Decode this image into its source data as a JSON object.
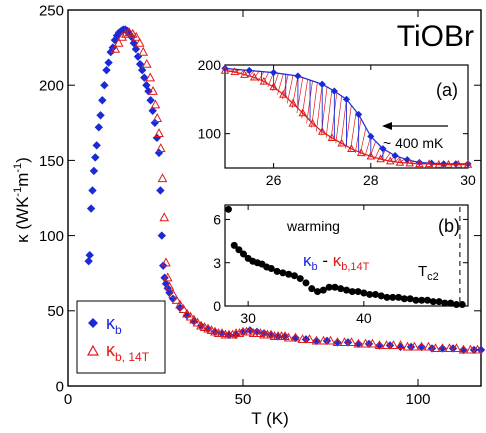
{
  "chart_data": [
    {
      "id": "main",
      "type": "scatter",
      "title": "TiOBr",
      "xlabel": "T (K)",
      "ylabel_parts": [
        "κ (WK",
        "-1",
        "m",
        "-1",
        ")"
      ],
      "xlim": [
        0,
        118
      ],
      "ylim": [
        0,
        250
      ],
      "xticks": [
        0,
        50,
        100
      ],
      "yticks": [
        0,
        50,
        100,
        150,
        200,
        250
      ],
      "legend": {
        "placement": "bottom-left",
        "entries": [
          {
            "symbol": "κ",
            "sub": "b",
            "marker": "filled-diamond",
            "color": "#1a2bd6"
          },
          {
            "symbol": "κ",
            "sub": "b, 14T",
            "marker": "open-triangle",
            "color": "#e01b1b"
          }
        ]
      },
      "series": [
        {
          "name": "κb",
          "marker": "filled-diamond",
          "color": "#1a2bd6",
          "x": [
            5.9,
            6.2,
            6.6,
            7.0,
            7.4,
            7.8,
            8.2,
            8.8,
            9.3,
            9.8,
            10.4,
            11.0,
            11.6,
            12.2,
            12.8,
            13.4,
            14.0,
            14.6,
            15.2,
            15.8,
            16.4,
            17.0,
            17.6,
            18.2,
            18.8,
            19.4,
            20.0,
            20.6,
            21.2,
            21.8,
            22.4,
            23.0,
            23.6,
            24.2,
            24.8,
            25.4,
            26.0,
            26.4,
            26.8,
            27.2,
            27.6,
            28.0,
            28.5,
            29.0,
            30,
            32,
            34,
            36,
            38,
            40,
            42,
            44,
            46,
            48,
            50,
            52,
            54,
            56,
            58,
            60,
            62,
            65,
            68,
            71,
            74,
            77,
            80,
            83,
            86,
            89,
            92,
            95,
            98,
            101,
            104,
            107,
            110,
            113,
            116,
            118
          ],
          "y": [
            83,
            87,
            118,
            130,
            143,
            152,
            160,
            172,
            180,
            190,
            200,
            210,
            215,
            222,
            225,
            230,
            233,
            235,
            236,
            237,
            237,
            236,
            234,
            232,
            228,
            224,
            219,
            214,
            210,
            205,
            200,
            196,
            190,
            183,
            175,
            165,
            155,
            130,
            100,
            80,
            72,
            68,
            65,
            62,
            58,
            52,
            47,
            43,
            40,
            38,
            36,
            35,
            34,
            34,
            36,
            37,
            36,
            35,
            34,
            33,
            33,
            32,
            31,
            30,
            30,
            29,
            29,
            28,
            28,
            27,
            27,
            26,
            26,
            26,
            25,
            25,
            25,
            24,
            24,
            24
          ]
        },
        {
          "name": "κb, 14T",
          "marker": "open-triangle",
          "color": "#e01b1b",
          "x": [
            13.5,
            14.5,
            15.5,
            16.5,
            17.5,
            18.5,
            19.5,
            20.5,
            21.5,
            22.5,
            23.5,
            24.3,
            25.0,
            25.5,
            26.0,
            26.5,
            27.0,
            27.5,
            28.0,
            28.5,
            29,
            30,
            31,
            32,
            33,
            34,
            35,
            36,
            37,
            38,
            39,
            40,
            41,
            42,
            43,
            44,
            45,
            46,
            47,
            48,
            49,
            50,
            51,
            52,
            53,
            54,
            55,
            56,
            57,
            58,
            59,
            60,
            61,
            62,
            63,
            65,
            67,
            69,
            71,
            73,
            75,
            77,
            79,
            81,
            83,
            85,
            87,
            89,
            91,
            93,
            95,
            97,
            99,
            101,
            103,
            105,
            107,
            109,
            111,
            113,
            115,
            117
          ],
          "y": [
            224,
            228,
            232,
            234,
            235,
            234,
            232,
            228,
            222,
            214,
            205,
            196,
            187,
            178,
            168,
            158,
            138,
            112,
            82,
            72,
            66,
            61,
            57,
            54,
            51,
            48,
            46,
            44,
            42,
            40,
            39,
            38,
            37,
            36,
            35,
            35,
            34,
            34,
            34,
            35,
            35,
            36,
            36,
            36,
            35,
            35,
            35,
            34,
            34,
            34,
            33,
            33,
            33,
            33,
            32,
            32,
            31,
            31,
            30,
            30,
            30,
            29,
            29,
            29,
            28,
            28,
            28,
            27,
            27,
            27,
            27,
            26,
            26,
            26,
            26,
            25,
            25,
            25,
            25,
            24,
            24,
            24
          ]
        }
      ]
    },
    {
      "id": "inset-a",
      "type": "line",
      "label": "(a)",
      "annotation": "~ 400 mK",
      "xlim": [
        25,
        30
      ],
      "ylim": [
        50,
        200
      ],
      "xticks": [
        26,
        28,
        30
      ],
      "yticks": [
        100,
        200
      ],
      "series": [
        {
          "name": "κb",
          "marker": "filled-diamond",
          "color": "#1a2bd6",
          "x": [
            25.0,
            25.5,
            26.0,
            26.5,
            27.0,
            27.25,
            27.5,
            27.75,
            28.0,
            28.25,
            28.5,
            28.75,
            29.0,
            29.25,
            29.5,
            29.75,
            30.0
          ],
          "y": [
            195,
            192,
            189,
            184,
            172,
            162,
            150,
            128,
            96,
            78,
            68,
            62,
            58,
            57,
            56,
            56,
            56
          ]
        },
        {
          "name": "κb, 14T",
          "marker": "open-triangle",
          "color": "#e01b1b",
          "x": [
            25.0,
            25.2,
            25.4,
            25.6,
            25.8,
            26.0,
            26.2,
            26.4,
            26.6,
            26.8,
            27.0,
            27.2,
            27.4,
            27.6,
            27.8,
            28.0,
            28.2,
            28.4,
            28.6,
            28.8,
            29.0,
            29.2,
            29.4,
            29.6,
            29.8,
            30.0
          ],
          "y": [
            192,
            190,
            186,
            182,
            176,
            168,
            157,
            144,
            130,
            115,
            103,
            94,
            86,
            78,
            72,
            67,
            63,
            60,
            58,
            57,
            56,
            56,
            55,
            55,
            55,
            55
          ]
        }
      ]
    },
    {
      "id": "inset-b",
      "type": "scatter",
      "label": "(b)",
      "annotation_parts": [
        "warming"
      ],
      "difference_label": {
        "left": "κ",
        "left_sub": "b",
        "minus": " - ",
        "right": "κ",
        "right_sub": "b,14T"
      },
      "tc2_label": {
        "main": "T",
        "sub": "c2"
      },
      "tc2_x": 48.3,
      "xlim": [
        28,
        49
      ],
      "ylim": [
        0,
        7
      ],
      "xticks": [
        30,
        40
      ],
      "yticks": [
        0,
        3,
        6
      ],
      "series": [
        {
          "name": "κb - κb,14T",
          "marker": "filled-circle",
          "color": "#000000",
          "x": [
            28.3,
            28.8,
            29.2,
            29.6,
            30.0,
            30.4,
            30.8,
            31.2,
            31.6,
            32.0,
            32.5,
            33.0,
            33.5,
            34.0,
            34.5,
            35.0,
            35.5,
            36.0,
            36.5,
            37.0,
            37.5,
            38.0,
            38.5,
            39.0,
            39.5,
            40.0,
            40.5,
            41.0,
            41.5,
            42.0,
            42.5,
            43.0,
            43.5,
            44.0,
            44.5,
            45.0,
            45.5,
            46.0,
            46.5,
            47.0,
            47.5,
            48.0,
            48.5
          ],
          "y": [
            6.7,
            4.2,
            3.9,
            3.6,
            3.3,
            3.1,
            3.0,
            2.9,
            2.7,
            2.6,
            2.4,
            2.3,
            2.2,
            2.1,
            1.9,
            1.6,
            1.2,
            1.0,
            1.1,
            1.3,
            1.3,
            1.2,
            1.1,
            1.0,
            1.0,
            0.9,
            0.8,
            0.8,
            0.7,
            0.6,
            0.6,
            0.6,
            0.5,
            0.5,
            0.4,
            0.4,
            0.4,
            0.3,
            0.3,
            0.2,
            0.2,
            0.1,
            0.1
          ]
        }
      ]
    }
  ]
}
